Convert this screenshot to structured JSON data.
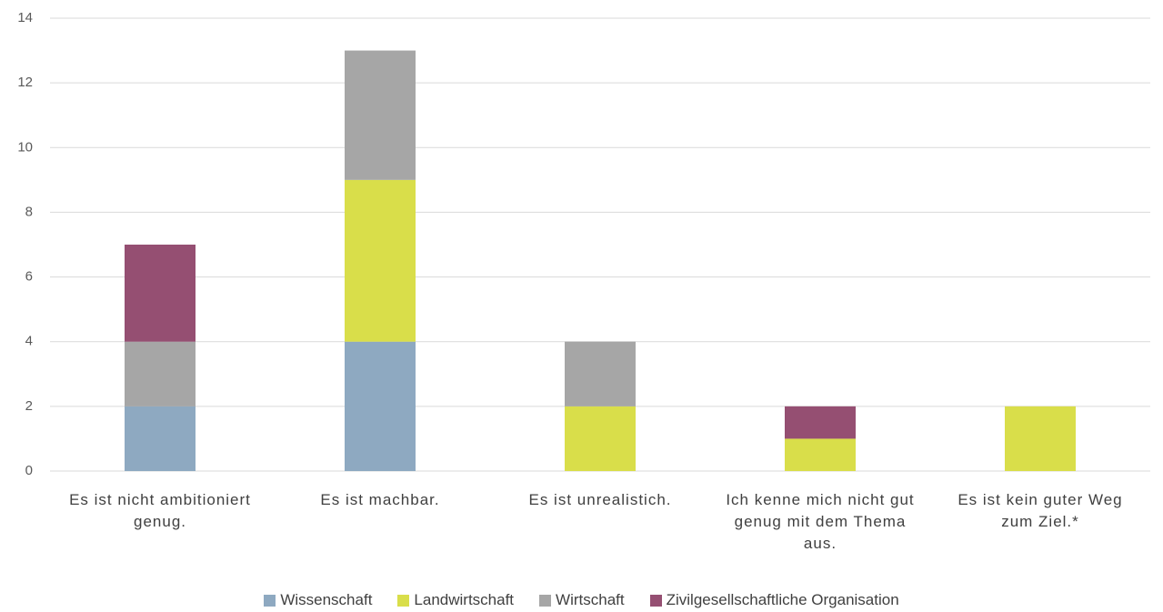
{
  "chart_data": {
    "type": "stacked_bar",
    "categories": [
      "Es ist nicht ambitioniert genug.",
      "Es ist machbar.",
      "Es ist unrealistich.",
      "Ich kenne mich nicht gut genug mit dem Thema aus.",
      "Es ist kein guter Weg zum Ziel.*"
    ],
    "series": [
      {
        "name": "Wissenschaft",
        "color": "#8ea9c1",
        "values": [
          2,
          4,
          0,
          0,
          0
        ]
      },
      {
        "name": "Landwirtschaft",
        "color": "#d9de4a",
        "values": [
          0,
          5,
          2,
          1,
          2
        ]
      },
      {
        "name": "Wirtschaft",
        "color": "#a6a6a6",
        "values": [
          2,
          4,
          2,
          0,
          0
        ]
      },
      {
        "name": "Zivilgesellschaftliche Organisation",
        "color": "#954f72",
        "values": [
          3,
          0,
          0,
          1,
          0
        ]
      }
    ],
    "ylim": [
      0,
      14
    ],
    "yticks": [
      0,
      2,
      4,
      6,
      8,
      10,
      12,
      14
    ],
    "grid": true,
    "legend": "bottom"
  }
}
